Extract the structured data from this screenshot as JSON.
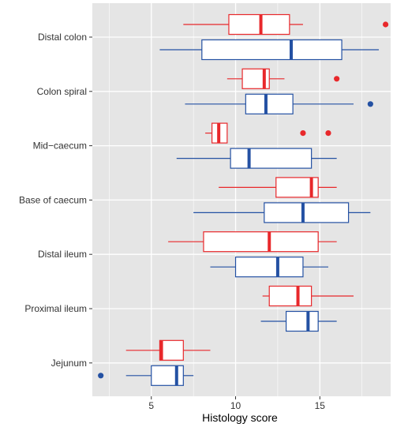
{
  "chart_data": {
    "type": "boxplot",
    "orientation": "horizontal",
    "xlabel": "Histology score",
    "ylabel": "",
    "xlim": [
      1.5,
      19.2
    ],
    "x_ticks": [
      5,
      10,
      15
    ],
    "grid": true,
    "legend": "none",
    "categories": [
      "Distal colon",
      "Colon spiral",
      "Mid−caecum",
      "Base of caecum",
      "Distal ileum",
      "Proximal ileum",
      "Jejunum"
    ],
    "series": [
      {
        "color": "#e8282b",
        "boxes": [
          {
            "whisker_low": 6.9,
            "q1": 9.6,
            "median": 11.5,
            "q3": 13.2,
            "whisker_high": 14.0,
            "outliers": [
              18.9
            ]
          },
          {
            "whisker_low": 9.5,
            "q1": 10.4,
            "median": 11.7,
            "q3": 12.0,
            "whisker_high": 12.9,
            "outliers": [
              16.0
            ]
          },
          {
            "whisker_low": 8.2,
            "q1": 8.6,
            "median": 9.0,
            "q3": 9.5,
            "whisker_high": 9.5,
            "outliers": [
              14.0,
              15.5
            ]
          },
          {
            "whisker_low": 9.0,
            "q1": 12.4,
            "median": 14.5,
            "q3": 14.9,
            "whisker_high": 16.0,
            "outliers": []
          },
          {
            "whisker_low": 6.0,
            "q1": 8.1,
            "median": 12.0,
            "q3": 14.9,
            "whisker_high": 16.0,
            "outliers": []
          },
          {
            "whisker_low": 11.6,
            "q1": 12.0,
            "median": 13.7,
            "q3": 14.5,
            "whisker_high": 17.0,
            "outliers": []
          },
          {
            "whisker_low": 3.5,
            "q1": 5.5,
            "median": 5.6,
            "q3": 6.9,
            "whisker_high": 8.5,
            "outliers": []
          }
        ]
      },
      {
        "color": "#2451a3",
        "boxes": [
          {
            "whisker_low": 5.5,
            "q1": 8.0,
            "median": 13.3,
            "q3": 16.3,
            "whisker_high": 18.5,
            "outliers": []
          },
          {
            "whisker_low": 7.0,
            "q1": 10.6,
            "median": 11.8,
            "q3": 13.4,
            "whisker_high": 17.0,
            "outliers": [
              18.0
            ]
          },
          {
            "whisker_low": 6.5,
            "q1": 9.7,
            "median": 10.8,
            "q3": 14.5,
            "whisker_high": 16.0,
            "outliers": []
          },
          {
            "whisker_low": 7.5,
            "q1": 11.7,
            "median": 14.0,
            "q3": 16.7,
            "whisker_high": 18.0,
            "outliers": []
          },
          {
            "whisker_low": 8.5,
            "q1": 10.0,
            "median": 12.5,
            "q3": 14.0,
            "whisker_high": 15.5,
            "outliers": []
          },
          {
            "whisker_low": 11.5,
            "q1": 13.0,
            "median": 14.3,
            "q3": 14.9,
            "whisker_high": 16.0,
            "outliers": []
          },
          {
            "whisker_low": 3.5,
            "q1": 5.0,
            "median": 6.5,
            "q3": 6.9,
            "whisker_high": 7.5,
            "outliers": [
              2.0
            ]
          }
        ]
      }
    ]
  },
  "colors": {
    "panel_background": "#e5e5e5",
    "grid": "#ffffff",
    "box_fill": "#ffffff"
  }
}
